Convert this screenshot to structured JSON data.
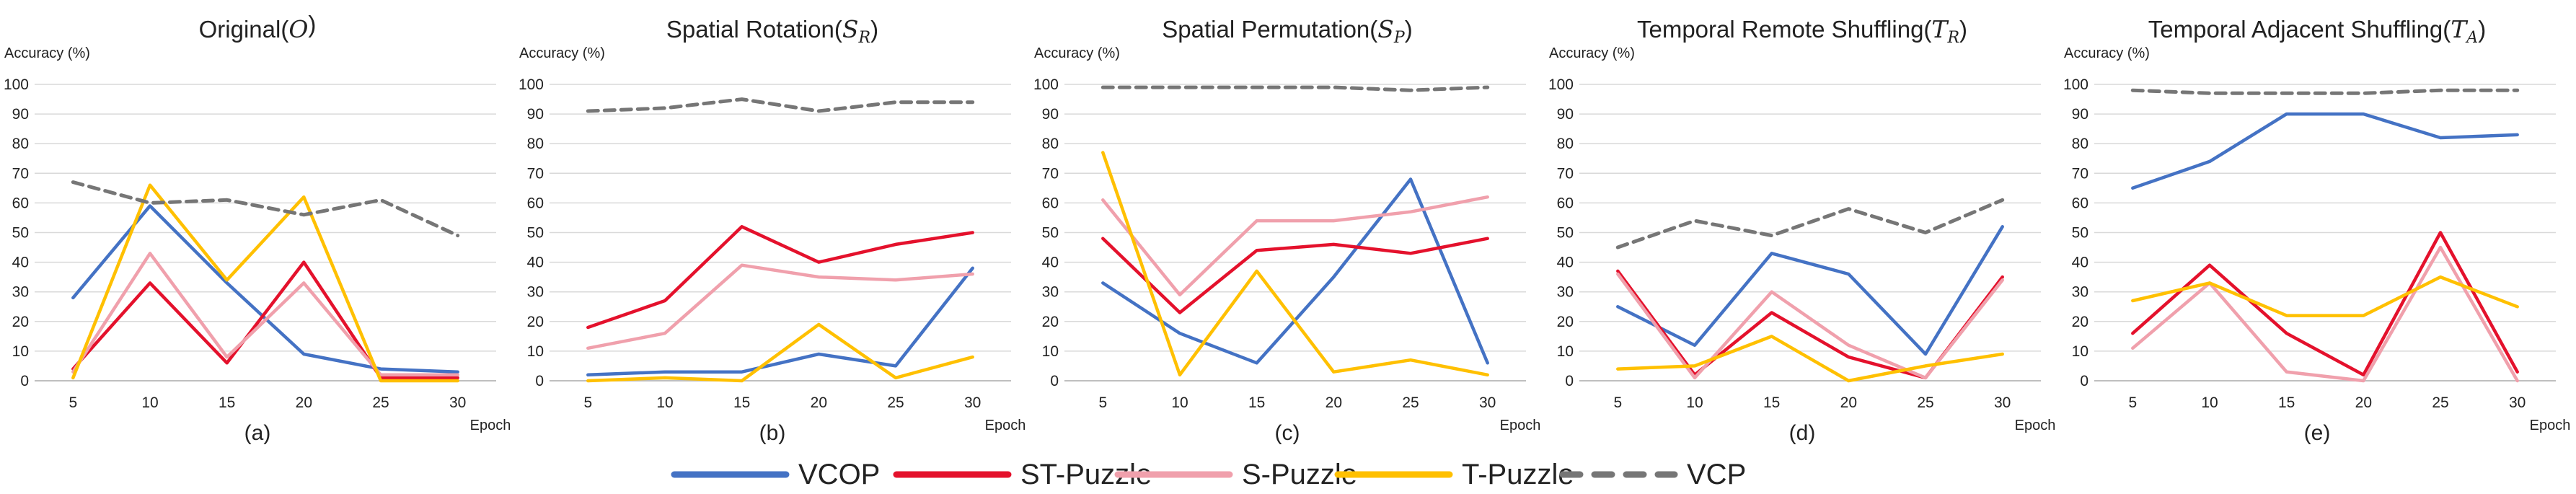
{
  "colors": {
    "VCOP": "#4472C4",
    "ST-Puzzle": "#E4112C",
    "S-Puzzle": "#F0A0AC",
    "T-Puzzle": "#FFC000",
    "VCP": "#767676",
    "grid": "#D9D9D9",
    "axis": "#BFBFBF",
    "text": "#222222"
  },
  "legend": [
    {
      "name": "VCOP",
      "style": "solid"
    },
    {
      "name": "ST-Puzzle",
      "style": "solid"
    },
    {
      "name": "S-Puzzle",
      "style": "solid"
    },
    {
      "name": "T-Puzzle",
      "style": "solid"
    },
    {
      "name": "VCP",
      "style": "dashed"
    }
  ],
  "chart_data": [
    {
      "type": "line",
      "title": "Original(",
      "title_symbol": "O",
      "title_sub": "",
      "title_close": ")",
      "ylabel": "Accuracy (%)",
      "xlabel": "Epoch",
      "caption": "(a)",
      "categories": [
        "5",
        "10",
        "15",
        "20",
        "25",
        "30"
      ],
      "y_ticks": [
        "0",
        "10",
        "20",
        "30",
        "40",
        "50",
        "60",
        "70",
        "80",
        "90",
        "100"
      ],
      "ylim": [
        0,
        100
      ],
      "grid": true,
      "series": [
        {
          "name": "VCOP",
          "values": [
            28,
            59,
            33,
            9,
            4,
            3
          ]
        },
        {
          "name": "ST-Puzzle",
          "values": [
            4,
            33,
            6,
            40,
            1,
            1
          ]
        },
        {
          "name": "S-Puzzle",
          "values": [
            3,
            43,
            8,
            33,
            2,
            2
          ]
        },
        {
          "name": "T-Puzzle",
          "values": [
            1,
            66,
            34,
            62,
            0,
            0
          ]
        },
        {
          "name": "VCP",
          "values": [
            67,
            60,
            61,
            56,
            61,
            49
          ]
        }
      ]
    },
    {
      "type": "line",
      "title": "Spatial Rotation(",
      "title_symbol": "S",
      "title_sub": "R",
      "title_close": ")",
      "ylabel": "Accuracy (%)",
      "xlabel": "Epoch",
      "caption": "(b)",
      "categories": [
        "5",
        "10",
        "15",
        "20",
        "25",
        "30"
      ],
      "y_ticks": [
        "0",
        "10",
        "20",
        "30",
        "40",
        "50",
        "60",
        "70",
        "80",
        "90",
        "100"
      ],
      "ylim": [
        0,
        100
      ],
      "grid": true,
      "series": [
        {
          "name": "VCOP",
          "values": [
            2,
            3,
            3,
            9,
            5,
            38
          ]
        },
        {
          "name": "ST-Puzzle",
          "values": [
            18,
            27,
            52,
            40,
            46,
            50
          ]
        },
        {
          "name": "S-Puzzle",
          "values": [
            11,
            16,
            39,
            35,
            34,
            36
          ]
        },
        {
          "name": "T-Puzzle",
          "values": [
            0,
            1,
            0,
            19,
            1,
            8
          ]
        },
        {
          "name": "VCP",
          "values": [
            91,
            92,
            95,
            91,
            94,
            94
          ]
        }
      ]
    },
    {
      "type": "line",
      "title": "Spatial Permutation(",
      "title_symbol": "S",
      "title_sub": "P",
      "title_close": ")",
      "ylabel": "Accuracy (%)",
      "xlabel": "Epoch",
      "caption": "(c)",
      "categories": [
        "5",
        "10",
        "15",
        "20",
        "25",
        "30"
      ],
      "y_ticks": [
        "0",
        "10",
        "20",
        "30",
        "40",
        "50",
        "60",
        "70",
        "80",
        "90",
        "100"
      ],
      "ylim": [
        0,
        100
      ],
      "grid": true,
      "series": [
        {
          "name": "VCOP",
          "values": [
            33,
            16,
            6,
            35,
            68,
            6
          ]
        },
        {
          "name": "ST-Puzzle",
          "values": [
            48,
            23,
            44,
            46,
            43,
            48
          ]
        },
        {
          "name": "S-Puzzle",
          "values": [
            61,
            29,
            54,
            54,
            57,
            62
          ]
        },
        {
          "name": "T-Puzzle",
          "values": [
            77,
            2,
            37,
            3,
            7,
            2
          ]
        },
        {
          "name": "VCP",
          "values": [
            99,
            99,
            99,
            99,
            98,
            99
          ]
        }
      ]
    },
    {
      "type": "line",
      "title": "Temporal Remote Shuffling(",
      "title_symbol": "T",
      "title_sub": "R",
      "title_close": ")",
      "ylabel": "Accuracy (%)",
      "xlabel": "Epoch",
      "caption": "(d)",
      "categories": [
        "5",
        "10",
        "15",
        "20",
        "25",
        "30"
      ],
      "y_ticks": [
        "0",
        "10",
        "20",
        "30",
        "40",
        "50",
        "60",
        "70",
        "80",
        "90",
        "100"
      ],
      "ylim": [
        0,
        100
      ],
      "grid": true,
      "series": [
        {
          "name": "VCOP",
          "values": [
            25,
            12,
            43,
            36,
            9,
            52
          ]
        },
        {
          "name": "ST-Puzzle",
          "values": [
            37,
            2,
            23,
            8,
            1,
            35
          ]
        },
        {
          "name": "S-Puzzle",
          "values": [
            36,
            1,
            30,
            12,
            1,
            34
          ]
        },
        {
          "name": "T-Puzzle",
          "values": [
            4,
            5,
            15,
            0,
            5,
            9
          ]
        },
        {
          "name": "VCP",
          "values": [
            45,
            54,
            49,
            58,
            50,
            61
          ]
        }
      ]
    },
    {
      "type": "line",
      "title": "Temporal Adjacent Shuffling(",
      "title_symbol": "T",
      "title_sub": "A",
      "title_close": ")",
      "ylabel": "Accuracy (%)",
      "xlabel": "Epoch",
      "caption": "(e)",
      "categories": [
        "5",
        "10",
        "15",
        "20",
        "25",
        "30"
      ],
      "y_ticks": [
        "0",
        "10",
        "20",
        "30",
        "40",
        "50",
        "60",
        "70",
        "80",
        "90",
        "100"
      ],
      "ylim": [
        0,
        100
      ],
      "grid": true,
      "series": [
        {
          "name": "VCOP",
          "values": [
            65,
            74,
            90,
            90,
            82,
            83
          ]
        },
        {
          "name": "ST-Puzzle",
          "values": [
            16,
            39,
            16,
            2,
            50,
            3
          ]
        },
        {
          "name": "S-Puzzle",
          "values": [
            11,
            33,
            3,
            0,
            45,
            0
          ]
        },
        {
          "name": "T-Puzzle",
          "values": [
            27,
            33,
            22,
            22,
            35,
            25
          ]
        },
        {
          "name": "VCP",
          "values": [
            98,
            97,
            97,
            97,
            98,
            98
          ]
        }
      ]
    }
  ]
}
